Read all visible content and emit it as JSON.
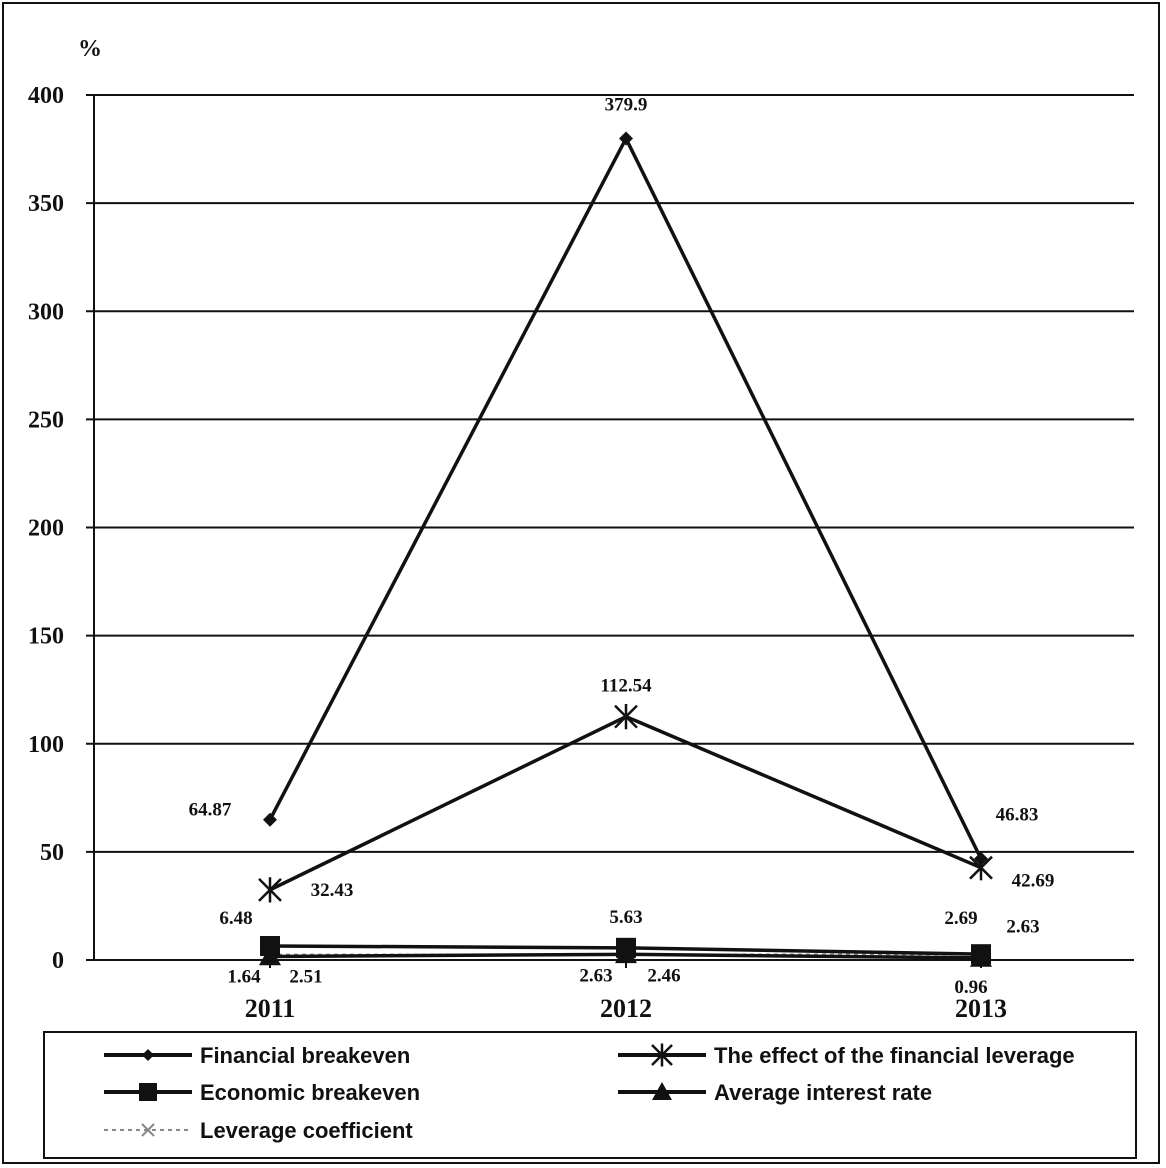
{
  "chart_data": {
    "type": "line",
    "y_unit": "%",
    "categories": [
      "2011",
      "2012",
      "2013"
    ],
    "ylim": [
      0,
      400
    ],
    "y_ticks": [
      0,
      50,
      100,
      150,
      200,
      250,
      300,
      350,
      400
    ],
    "grid": true,
    "legend_position": "bottom",
    "series": [
      {
        "name": "Financial breakeven",
        "values": [
          64.87,
          379.9,
          46.83
        ],
        "marker": "diamond",
        "labels": [
          "64.87",
          "379.9",
          "46.83"
        ]
      },
      {
        "name": "The effect of the financial leverage",
        "values": [
          32.43,
          112.54,
          42.69
        ],
        "marker": "asterisk",
        "labels": [
          "32.43",
          "112.54",
          "42.69"
        ]
      },
      {
        "name": "Economic breakeven",
        "values": [
          6.48,
          5.63,
          2.69
        ],
        "marker": "square",
        "labels": [
          "6.48",
          "5.63",
          "2.69"
        ]
      },
      {
        "name": "Average interest rate",
        "values": [
          1.64,
          2.63,
          0.96
        ],
        "marker": "triangle",
        "labels": [
          "1.64",
          "2.63",
          "0.96"
        ]
      },
      {
        "name": "Leverage coefficient",
        "values": [
          2.51,
          2.46,
          2.63
        ],
        "marker": "x",
        "dashed": true,
        "labels": [
          "2.51",
          "2.46",
          "2.63"
        ]
      }
    ],
    "colors": {
      "line": "#111111",
      "dashed": "#888888"
    }
  }
}
